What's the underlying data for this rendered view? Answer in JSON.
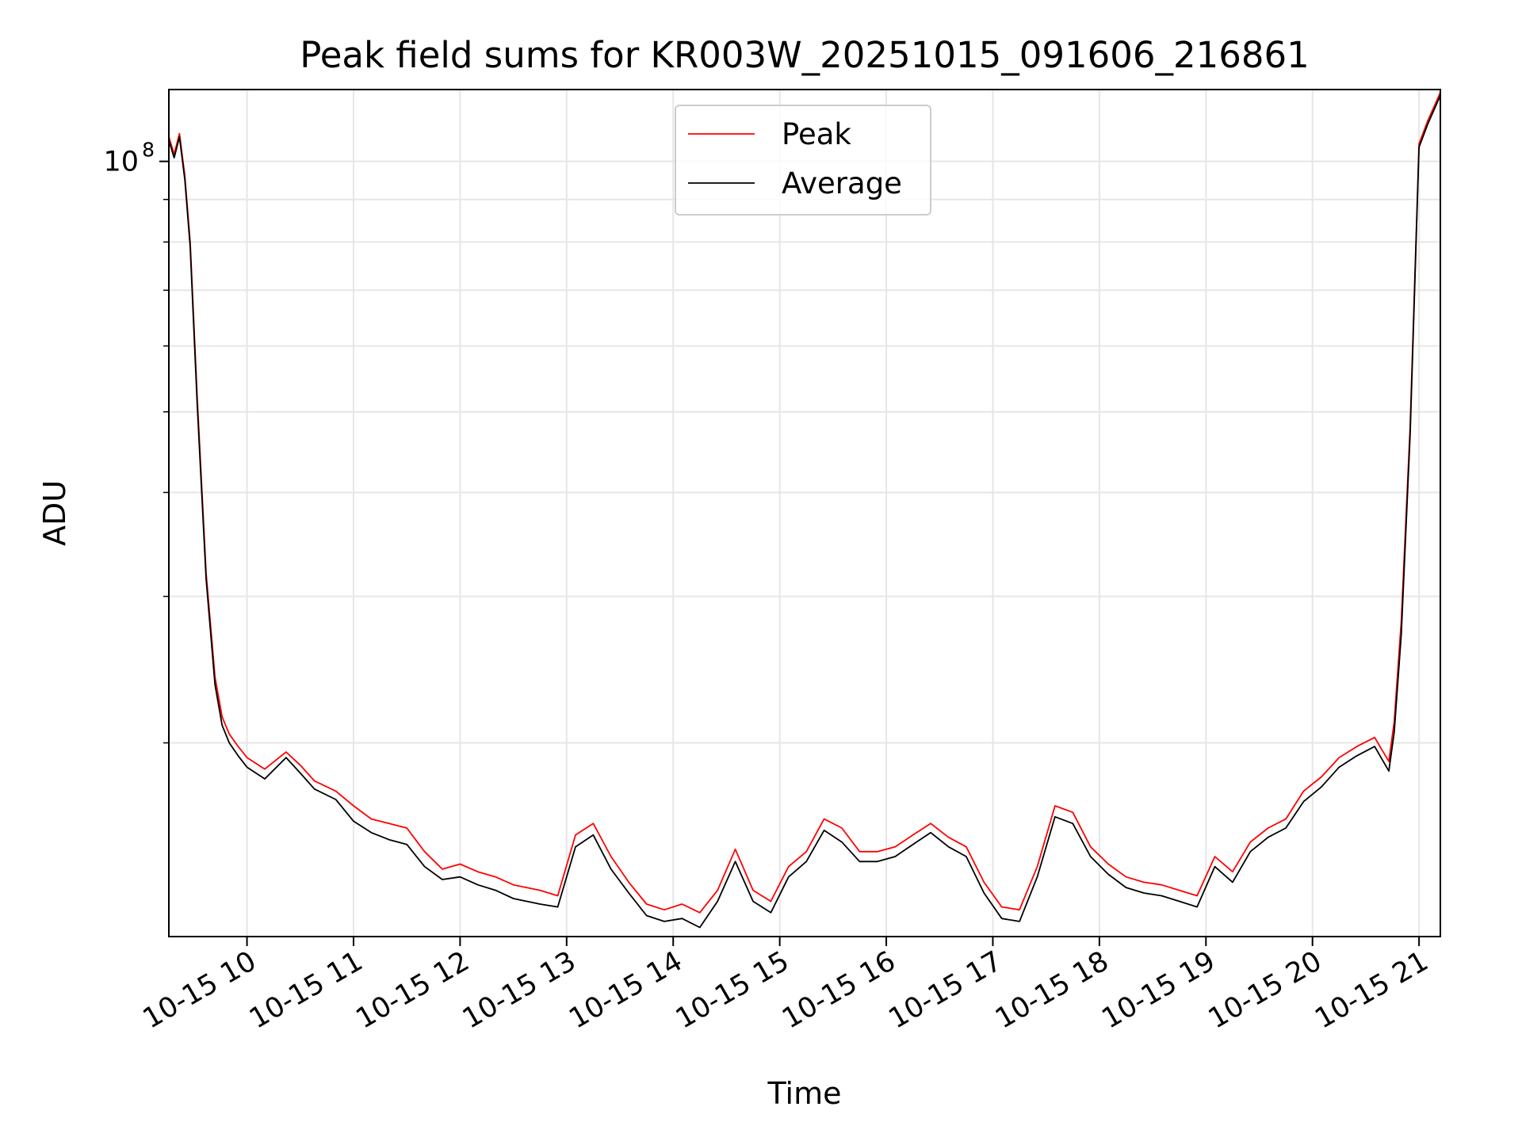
{
  "chart_data": {
    "type": "line",
    "title": "Peak field sums for KR003W_20251015_091606_216861",
    "xlabel": "Time",
    "ylabel": "ADU",
    "yscale": "log",
    "grid": true,
    "legend_position": "top-center",
    "xlim": [
      "2025-10-15 09:16",
      "2025-10-15 21:12"
    ],
    "ylim": [
      11700000,
      122000000
    ],
    "x_ticks": [
      "10-15 10",
      "10-15 11",
      "10-15 12",
      "10-15 13",
      "10-15 14",
      "10-15 15",
      "10-15 16",
      "10-15 17",
      "10-15 18",
      "10-15 19",
      "10-15 20",
      "10-15 21"
    ],
    "y_ticks": [
      {
        "value": 100000000,
        "base": "10",
        "exponent": "8"
      }
    ],
    "x": [
      "2025-10-15 09:16",
      "2025-10-15 09:19",
      "2025-10-15 09:22",
      "2025-10-15 09:25",
      "2025-10-15 09:28",
      "2025-10-15 09:32",
      "2025-10-15 09:37",
      "2025-10-15 09:42",
      "2025-10-15 09:46",
      "2025-10-15 09:50",
      "2025-10-15 09:55",
      "2025-10-15 10:00",
      "2025-10-15 10:10",
      "2025-10-15 10:22",
      "2025-10-15 10:30",
      "2025-10-15 10:38",
      "2025-10-15 10:50",
      "2025-10-15 11:00",
      "2025-10-15 11:10",
      "2025-10-15 11:20",
      "2025-10-15 11:30",
      "2025-10-15 11:40",
      "2025-10-15 11:50",
      "2025-10-15 12:00",
      "2025-10-15 12:10",
      "2025-10-15 12:20",
      "2025-10-15 12:30",
      "2025-10-15 12:45",
      "2025-10-15 12:55",
      "2025-10-15 13:05",
      "2025-10-15 13:15",
      "2025-10-15 13:25",
      "2025-10-15 13:35",
      "2025-10-15 13:45",
      "2025-10-15 13:55",
      "2025-10-15 14:05",
      "2025-10-15 14:15",
      "2025-10-15 14:25",
      "2025-10-15 14:35",
      "2025-10-15 14:45",
      "2025-10-15 14:55",
      "2025-10-15 15:05",
      "2025-10-15 15:15",
      "2025-10-15 15:25",
      "2025-10-15 15:35",
      "2025-10-15 15:45",
      "2025-10-15 15:55",
      "2025-10-15 16:05",
      "2025-10-15 16:15",
      "2025-10-15 16:25",
      "2025-10-15 16:35",
      "2025-10-15 16:45",
      "2025-10-15 16:55",
      "2025-10-15 17:05",
      "2025-10-15 17:15",
      "2025-10-15 17:25",
      "2025-10-15 17:35",
      "2025-10-15 17:45",
      "2025-10-15 17:55",
      "2025-10-15 18:05",
      "2025-10-15 18:15",
      "2025-10-15 18:25",
      "2025-10-15 18:35",
      "2025-10-15 18:45",
      "2025-10-15 18:55",
      "2025-10-15 19:05",
      "2025-10-15 19:15",
      "2025-10-15 19:25",
      "2025-10-15 19:35",
      "2025-10-15 19:45",
      "2025-10-15 19:55",
      "2025-10-15 20:05",
      "2025-10-15 20:15",
      "2025-10-15 20:25",
      "2025-10-15 20:35",
      "2025-10-15 20:43",
      "2025-10-15 20:46",
      "2025-10-15 20:50",
      "2025-10-15 20:55",
      "2025-10-15 21:00",
      "2025-10-15 21:05",
      "2025-10-15 21:12"
    ],
    "series": [
      {
        "name": "Peak",
        "color": "#ff0000",
        "values": [
          107000000,
          102000000,
          108000000,
          96000000,
          80000000,
          52000000,
          32000000,
          24000000,
          21500000,
          20500000,
          19800000,
          19200000,
          18600000,
          19500000,
          18800000,
          18000000,
          17500000,
          16800000,
          16200000,
          16000000,
          15800000,
          14800000,
          14100000,
          14300000,
          14000000,
          13800000,
          13500000,
          13300000,
          13100000,
          15500000,
          16000000,
          14600000,
          13600000,
          12800000,
          12600000,
          12800000,
          12500000,
          13300000,
          14900000,
          13300000,
          12900000,
          14200000,
          14800000,
          16200000,
          15800000,
          14800000,
          14800000,
          15000000,
          15500000,
          16000000,
          15400000,
          15000000,
          13600000,
          12700000,
          12600000,
          14200000,
          16800000,
          16500000,
          15000000,
          14300000,
          13800000,
          13600000,
          13500000,
          13300000,
          13100000,
          14600000,
          14000000,
          15200000,
          15800000,
          16200000,
          17500000,
          18200000,
          19200000,
          19800000,
          20300000,
          19000000,
          21200000,
          28000000,
          48000000,
          105000000,
          112000000,
          121000000
        ]
      },
      {
        "name": "Average",
        "color": "#000000",
        "values": [
          106000000,
          101000000,
          107000000,
          95000000,
          79000000,
          51000000,
          31500000,
          23500000,
          21000000,
          20000000,
          19300000,
          18700000,
          18100000,
          19200000,
          18400000,
          17600000,
          17100000,
          16100000,
          15600000,
          15300000,
          15100000,
          14200000,
          13700000,
          13800000,
          13500000,
          13300000,
          13000000,
          12800000,
          12700000,
          15000000,
          15500000,
          14100000,
          13200000,
          12400000,
          12200000,
          12300000,
          12000000,
          12900000,
          14400000,
          12900000,
          12500000,
          13800000,
          14400000,
          15700000,
          15200000,
          14400000,
          14400000,
          14600000,
          15100000,
          15600000,
          15000000,
          14600000,
          13200000,
          12300000,
          12200000,
          13800000,
          16300000,
          16000000,
          14600000,
          13900000,
          13400000,
          13200000,
          13100000,
          12900000,
          12700000,
          14200000,
          13600000,
          14800000,
          15400000,
          15800000,
          17000000,
          17700000,
          18700000,
          19300000,
          19800000,
          18500000,
          20600000,
          27000000,
          47000000,
          104000000,
          111000000,
          120000000
        ]
      }
    ]
  }
}
